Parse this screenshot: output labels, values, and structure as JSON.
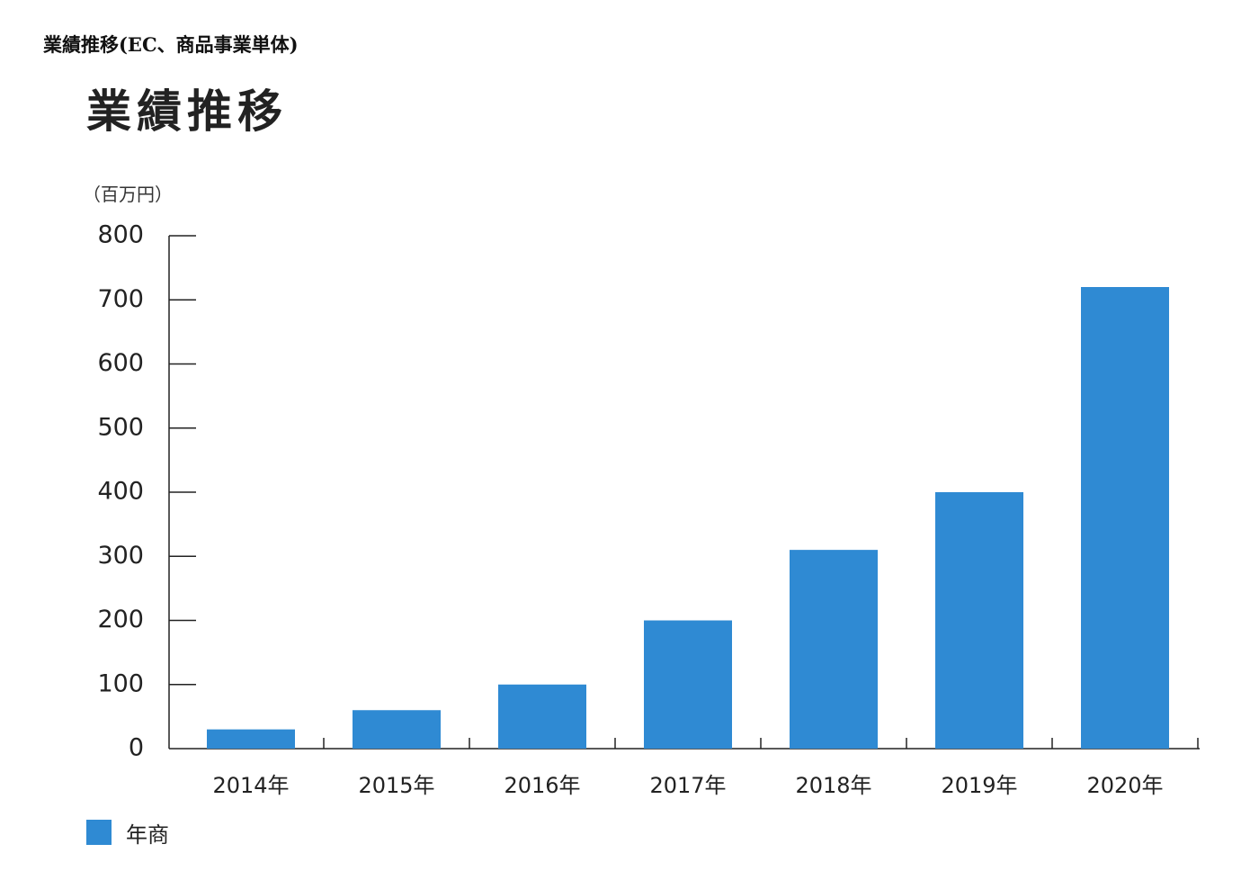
{
  "caption": "業績推移(EC、商品事業単体)",
  "chart_data": {
    "type": "bar",
    "title": "業績推移",
    "unit_label": "（百万円）",
    "categories": [
      "2014年",
      "2015年",
      "2016年",
      "2017年",
      "2018年",
      "2019年",
      "2020年"
    ],
    "series": [
      {
        "name": "年商",
        "values": [
          30,
          60,
          100,
          200,
          310,
          400,
          720
        ],
        "color": "#2f8ad3"
      }
    ],
    "ylim": [
      0,
      800
    ],
    "yticks": [
      0,
      100,
      200,
      300,
      400,
      500,
      600,
      700,
      800
    ],
    "xlabel": "",
    "ylabel": "",
    "grid": false,
    "legend_position": "bottom-left"
  }
}
